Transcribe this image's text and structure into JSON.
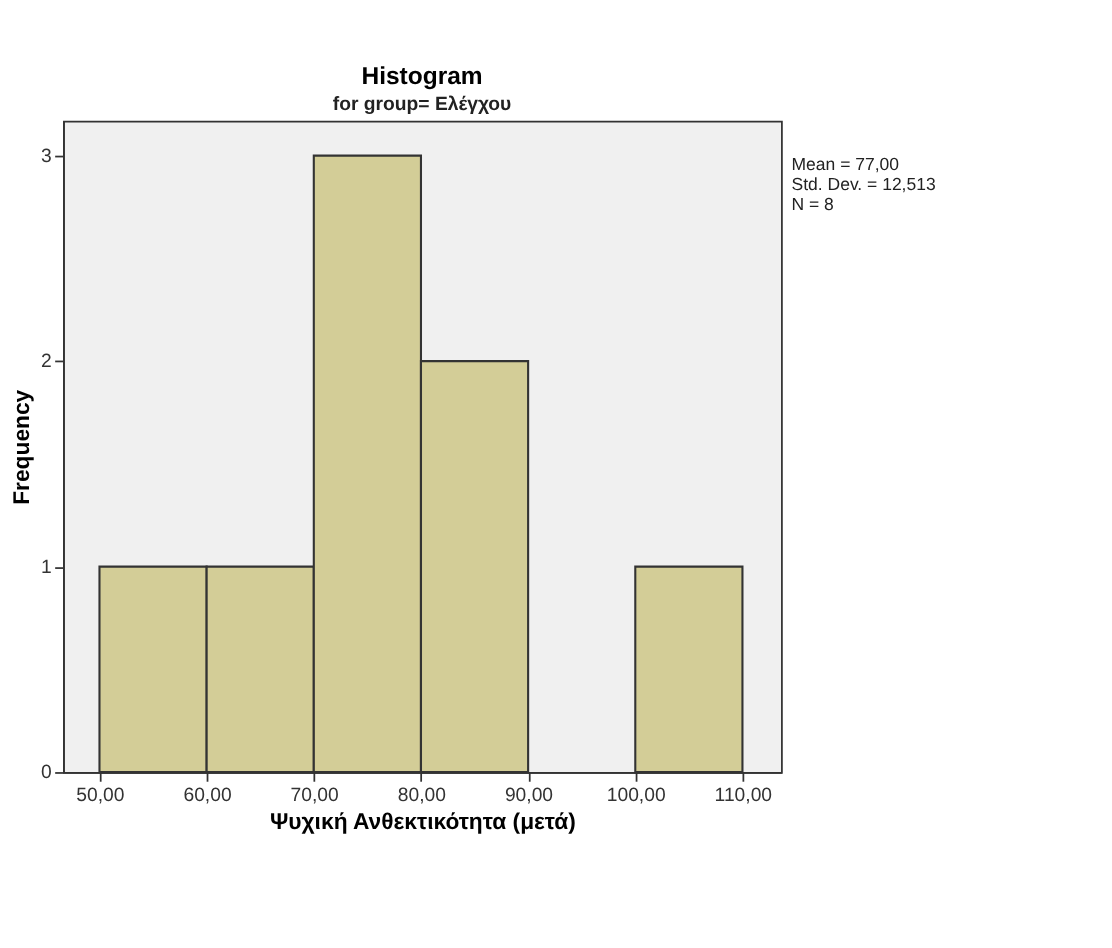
{
  "chart_data": {
    "type": "histogram",
    "title": "Histogram",
    "subtitle": "for group= Ελέγχου",
    "xlabel": "Ψυχική Ανθεκτικότητα (μετά)",
    "ylabel": "Frequency",
    "bins": [
      50,
      60,
      70,
      80,
      90,
      100,
      110
    ],
    "values": [
      1,
      1,
      3,
      2,
      0,
      1
    ],
    "color": "#d3cd97",
    "xlim": [
      46.6,
      113.6
    ],
    "xticks": [
      {
        "value": 50,
        "label": "50,00"
      },
      {
        "value": 60,
        "label": "60,00"
      },
      {
        "value": 70,
        "label": "70,00"
      },
      {
        "value": 80,
        "label": "80,00"
      },
      {
        "value": 90,
        "label": "90,00"
      },
      {
        "value": 100,
        "label": "100,00"
      },
      {
        "value": 110,
        "label": "110,00"
      }
    ],
    "ylim": [
      0,
      3.17
    ],
    "yticks": [
      0,
      1,
      2,
      3
    ],
    "grid": false,
    "annotations": [
      "Mean = 77,00",
      "Std. Dev. = 12,513",
      "N = 8"
    ]
  }
}
